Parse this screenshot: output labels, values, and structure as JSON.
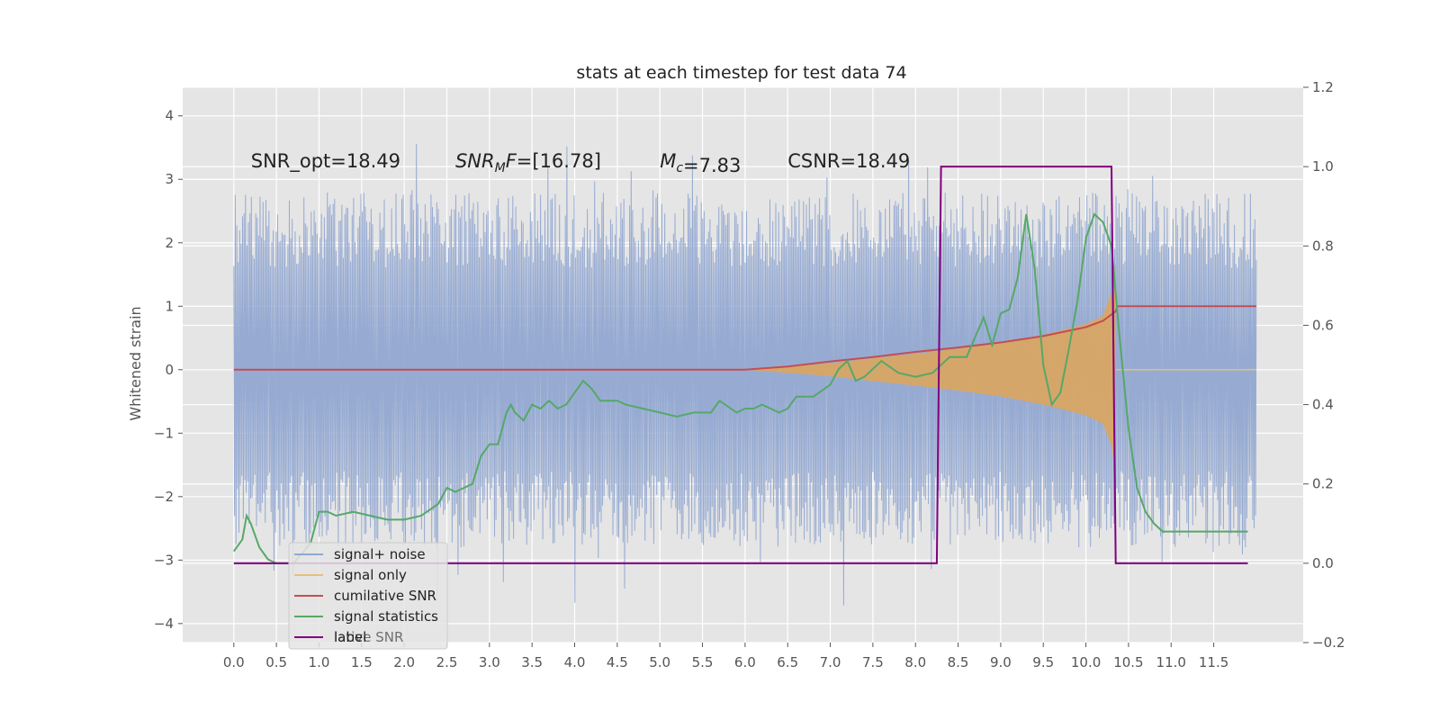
{
  "chart_data": {
    "type": "line",
    "title": "stats at each timestep for test data 74",
    "ylabel": "Whitened strain",
    "xlim": [
      -0.6,
      12.55
    ],
    "ylim": [
      -4.3,
      4.45
    ],
    "y2lim": [
      -0.2,
      1.2
    ],
    "grid": true,
    "legend_placement": "lower-left",
    "x_ticks": [
      0.0,
      0.5,
      1.0,
      1.5,
      2.0,
      2.5,
      3.0,
      3.5,
      4.0,
      4.5,
      5.0,
      5.5,
      6.0,
      6.5,
      7.0,
      7.5,
      8.0,
      8.5,
      9.0,
      9.5,
      10.0,
      10.5,
      11.0,
      11.5
    ],
    "x_tick_labels": [
      "0.0",
      "0.5",
      "1.0",
      "1.5",
      "2.0",
      "2.5",
      "3.0",
      "3.5",
      "4.0",
      "4.5",
      "5.0",
      "5.5",
      "6.0",
      "6.5",
      "7.0",
      "7.5",
      "8.0",
      "8.5",
      "9.0",
      "9.5",
      "10.0",
      "10.5",
      "11.0",
      "11.5"
    ],
    "y_ticks": [
      -4,
      -3,
      -2,
      -1,
      0,
      1,
      2,
      3,
      4
    ],
    "y_tick_labels": [
      "−4",
      "−3",
      "−2",
      "−1",
      "0",
      "1",
      "2",
      "3",
      "4"
    ],
    "y2_ticks": [
      -0.2,
      0.0,
      0.2,
      0.4,
      0.6,
      0.8,
      1.0,
      1.2
    ],
    "y2_tick_labels": [
      "−0.2",
      "0.0",
      "0.2",
      "0.4",
      "0.6",
      "0.8",
      "1.0",
      "1.2"
    ],
    "annotations": [
      {
        "pre": "SNR_opt=18.49",
        "x": 0.2,
        "y": 3.3
      },
      {
        "pre": "SNR",
        "sub": "M",
        "post": "F=[16.78]",
        "italic": true,
        "x": 2.6,
        "y": 3.3
      },
      {
        "pre": "M",
        "sub": "c",
        "post": "=7.83",
        "x": 5.0,
        "y": 3.3
      },
      {
        "pre": "CSNR=18.49",
        "x": 6.5,
        "y": 3.3
      }
    ],
    "legend": [
      "signal+ noise",
      "signal only",
      "cumilative SNR",
      "signal statistics",
      "label"
    ],
    "legend_ghost_text": "lative SNR",
    "series": [
      {
        "name": "signal+ noise",
        "axis": "left",
        "color": "#92a8d1",
        "x_range": [
          0.0,
          12.0
        ],
        "envelope_high": 2.7,
        "envelope_low": -2.7,
        "notes": "dense noise samples"
      },
      {
        "name": "signal only",
        "axis": "left",
        "color": "#dba55e",
        "x": [
          6.0,
          6.5,
          7.0,
          7.5,
          8.0,
          8.5,
          9.0,
          9.5,
          10.0,
          10.2,
          10.3,
          10.35
        ],
        "high": [
          0.0,
          0.05,
          0.1,
          0.18,
          0.25,
          0.33,
          0.42,
          0.55,
          0.72,
          0.85,
          1.2,
          1.7
        ],
        "low": [
          0.0,
          -0.05,
          -0.1,
          -0.18,
          -0.25,
          -0.33,
          -0.42,
          -0.55,
          -0.72,
          -0.85,
          -1.2,
          -1.7
        ]
      },
      {
        "name": "cumilative SNR",
        "axis": "left",
        "color": "#c44e52",
        "x": [
          0.0,
          6.0,
          6.5,
          7.0,
          7.5,
          8.0,
          8.5,
          9.0,
          9.5,
          10.0,
          10.2,
          10.35,
          10.37,
          12.0
        ],
        "y": [
          0.0,
          0.0,
          0.05,
          0.13,
          0.2,
          0.28,
          0.35,
          0.43,
          0.53,
          0.67,
          0.77,
          0.92,
          1.0,
          1.0
        ]
      },
      {
        "name": "signal statistics",
        "axis": "right",
        "color": "#55a868",
        "x": [
          0.0,
          0.1,
          0.15,
          0.2,
          0.3,
          0.4,
          0.5,
          0.7,
          0.9,
          1.0,
          1.1,
          1.2,
          1.4,
          1.6,
          1.8,
          2.0,
          2.2,
          2.4,
          2.5,
          2.6,
          2.7,
          2.8,
          2.9,
          3.0,
          3.1,
          3.2,
          3.25,
          3.3,
          3.4,
          3.5,
          3.6,
          3.7,
          3.8,
          3.9,
          4.0,
          4.1,
          4.2,
          4.3,
          4.5,
          4.6,
          4.8,
          5.0,
          5.2,
          5.4,
          5.6,
          5.7,
          5.9,
          6.0,
          6.1,
          6.2,
          6.4,
          6.5,
          6.6,
          6.8,
          7.0,
          7.1,
          7.2,
          7.3,
          7.4,
          7.6,
          7.8,
          8.0,
          8.2,
          8.4,
          8.6,
          8.8,
          8.9,
          9.0,
          9.1,
          9.2,
          9.3,
          9.4,
          9.5,
          9.6,
          9.7,
          9.8,
          9.9,
          10.0,
          10.1,
          10.2,
          10.3,
          10.4,
          10.5,
          10.6,
          10.7,
          10.8,
          10.9,
          11.0,
          11.2,
          11.5,
          11.9
        ],
        "y": [
          0.03,
          0.06,
          0.12,
          0.1,
          0.04,
          0.01,
          0.0,
          0.0,
          0.05,
          0.13,
          0.13,
          0.12,
          0.13,
          0.12,
          0.11,
          0.11,
          0.12,
          0.15,
          0.19,
          0.18,
          0.19,
          0.2,
          0.27,
          0.3,
          0.3,
          0.38,
          0.4,
          0.38,
          0.36,
          0.4,
          0.39,
          0.41,
          0.39,
          0.4,
          0.43,
          0.46,
          0.44,
          0.41,
          0.41,
          0.4,
          0.39,
          0.38,
          0.37,
          0.38,
          0.38,
          0.41,
          0.38,
          0.39,
          0.39,
          0.4,
          0.38,
          0.39,
          0.42,
          0.42,
          0.45,
          0.49,
          0.51,
          0.46,
          0.47,
          0.51,
          0.48,
          0.47,
          0.48,
          0.52,
          0.52,
          0.62,
          0.55,
          0.63,
          0.64,
          0.72,
          0.88,
          0.74,
          0.5,
          0.4,
          0.43,
          0.54,
          0.66,
          0.82,
          0.88,
          0.86,
          0.8,
          0.56,
          0.34,
          0.19,
          0.13,
          0.1,
          0.08,
          0.08,
          0.08,
          0.08,
          0.08
        ]
      },
      {
        "name": "label",
        "axis": "right",
        "color": "#800080",
        "x": [
          0.0,
          8.25,
          8.3,
          10.3,
          10.35,
          11.9
        ],
        "y": [
          0.0,
          0.0,
          1.0,
          1.0,
          0.0,
          0.0
        ]
      }
    ]
  }
}
